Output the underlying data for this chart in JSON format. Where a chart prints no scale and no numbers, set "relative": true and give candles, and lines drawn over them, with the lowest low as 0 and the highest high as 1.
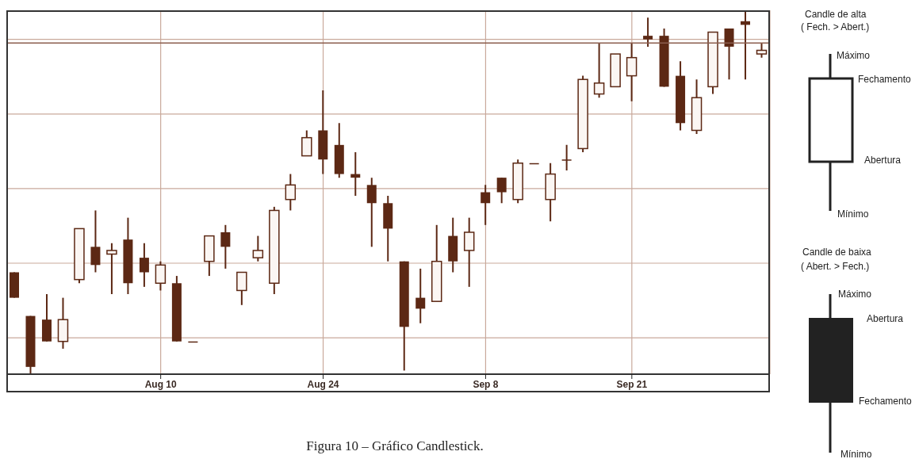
{
  "chart_data": {
    "type": "candlestick",
    "relative": true,
    "grid": true,
    "color": "#5c2814",
    "categories": [
      null,
      null,
      null,
      null,
      null,
      null,
      null,
      null,
      null,
      "Aug 10",
      null,
      null,
      null,
      null,
      null,
      null,
      null,
      null,
      null,
      "Aug 24",
      null,
      null,
      null,
      null,
      null,
      null,
      null,
      null,
      null,
      "Sep 8",
      null,
      null,
      null,
      null,
      null,
      null,
      null,
      null,
      "Sep 21",
      null,
      null,
      null,
      null,
      null,
      null,
      null,
      null
    ],
    "ohlc": [
      [
        0.28,
        0.28,
        0.21,
        0.21
      ],
      [
        0.16,
        0.16,
        0,
        0.02
      ],
      [
        0.15,
        0.22,
        0.09,
        0.09
      ],
      [
        0.09,
        0.21,
        0.07,
        0.15
      ],
      [
        0.26,
        0.4,
        0.25,
        0.4
      ],
      [
        0.35,
        0.45,
        0.28,
        0.3
      ],
      [
        0.33,
        0.36,
        0.22,
        0.34
      ],
      [
        0.37,
        0.43,
        0.22,
        0.25
      ],
      [
        0.32,
        0.36,
        0.24,
        0.28
      ],
      [
        0.25,
        0.31,
        0.23,
        0.3
      ],
      [
        0.25,
        0.27,
        0.09,
        0.09
      ],
      [
        0.09,
        0.09,
        0.09,
        0.09
      ],
      [
        0.31,
        0.38,
        0.27,
        0.38
      ],
      [
        0.39,
        0.41,
        0.29,
        0.35
      ],
      [
        0.23,
        0.28,
        0.19,
        0.28
      ],
      [
        0.32,
        0.38,
        0.31,
        0.34
      ],
      [
        0.25,
        0.46,
        0.22,
        0.45
      ],
      [
        0.48,
        0.55,
        0.45,
        0.52
      ],
      [
        0.6,
        0.67,
        0.6,
        0.65
      ],
      [
        0.67,
        0.78,
        0.55,
        0.59
      ],
      [
        0.63,
        0.69,
        0.54,
        0.55
      ],
      [
        0.55,
        0.61,
        0.49,
        0.54
      ],
      [
        0.52,
        0.54,
        0.35,
        0.47
      ],
      [
        0.47,
        0.49,
        0.31,
        0.4
      ],
      [
        0.31,
        0.31,
        0.01,
        0.13
      ],
      [
        0.21,
        0.29,
        0.14,
        0.18
      ],
      [
        0.2,
        0.41,
        0.2,
        0.31
      ],
      [
        0.38,
        0.43,
        0.28,
        0.31
      ],
      [
        0.34,
        0.43,
        0.24,
        0.39
      ],
      [
        0.5,
        0.52,
        0.41,
        0.47
      ],
      [
        0.54,
        0.54,
        0.47,
        0.5
      ],
      [
        0.48,
        0.59,
        0.47,
        0.58
      ],
      [
        0.58,
        0.58,
        0.58,
        0.58
      ],
      [
        0.48,
        0.58,
        0.42,
        0.55
      ],
      [
        0.59,
        0.63,
        0.56,
        0.59
      ],
      [
        0.62,
        0.82,
        0.61,
        0.81
      ],
      [
        0.77,
        0.91,
        0.76,
        0.8
      ],
      [
        0.79,
        0.88,
        0.79,
        0.88
      ],
      [
        0.82,
        0.91,
        0.75,
        0.87
      ],
      [
        0.93,
        0.98,
        0.9,
        0.92
      ],
      [
        0.93,
        0.95,
        0.79,
        0.79
      ],
      [
        0.82,
        0.86,
        0.67,
        0.69
      ],
      [
        0.67,
        0.81,
        0.66,
        0.76
      ],
      [
        0.79,
        0.94,
        0.77,
        0.94
      ],
      [
        0.95,
        0.95,
        0.81,
        0.9
      ],
      [
        0.97,
        1,
        0.81,
        0.96
      ],
      [
        0.88,
        0.91,
        0.87,
        0.89
      ]
    ],
    "ref_lines": [
      {
        "axis": "y",
        "value": 0.91,
        "color": "#8b5e4e"
      }
    ],
    "annotations": [
      "Figura 10 – Gráfico Candlestick.",
      "Candle de alta",
      "( Fech. > Abert.)",
      "Máximo",
      "Fechamento",
      "Abertura",
      "Mínimo",
      "Candle de baixa",
      "( Abert. > Fech.)",
      "Máximo",
      "Abertura",
      "Fechamento",
      "Mínimo"
    ]
  }
}
